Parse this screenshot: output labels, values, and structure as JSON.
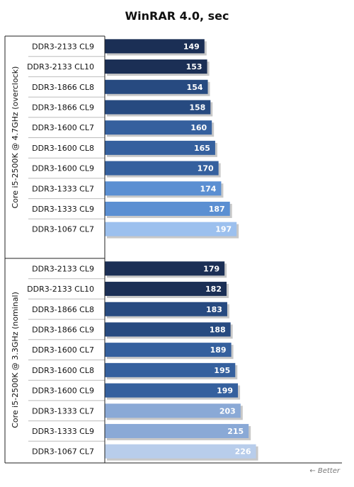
{
  "chart_data": {
    "type": "bar",
    "orientation": "horizontal",
    "title": "WinRAR 4.0, sec",
    "groups": [
      {
        "label": "Core i5-2500K @ 4.7GHz (overclock)",
        "categories": [
          "DDR3-2133 CL9",
          "DDR3-2133 CL10",
          "DDR3-1866 CL8",
          "DDR3-1866 CL9",
          "DDR3-1600 CL7",
          "DDR3-1600 CL8",
          "DDR3-1600 CL9",
          "DDR3-1333 CL7",
          "DDR3-1333 CL9",
          "DDR3-1067 CL7"
        ],
        "values": [
          149,
          153,
          154,
          158,
          160,
          165,
          170,
          174,
          187,
          197
        ]
      },
      {
        "label": "Core i5-2500K @ 3.3GHz (nominal)",
        "categories": [
          "DDR3-2133 CL9",
          "DDR3-2133 CL10",
          "DDR3-1866 CL8",
          "DDR3-1866 CL9",
          "DDR3-1600 CL7",
          "DDR3-1600 CL8",
          "DDR3-1600 CL9",
          "DDR3-1333 CL7",
          "DDR3-1333 CL9",
          "DDR3-1067 CL7"
        ],
        "values": [
          179,
          182,
          183,
          188,
          189,
          195,
          199,
          203,
          215,
          226
        ]
      }
    ],
    "xlim": [
      0,
      226
    ],
    "grid": false,
    "legend": "none",
    "note": "← Better",
    "colors": {
      "DDR3-2133": "#1b2f55",
      "DDR3-1866": "#274a80",
      "DDR3-1600": "#35609e",
      "DDR3-1333": "#5b8fd2",
      "DDR3-1067": "#9cc0ee",
      "DDR3-1333-nominal": "#8aa9d6",
      "DDR3-1067-nominal": "#b8cdeb"
    }
  }
}
